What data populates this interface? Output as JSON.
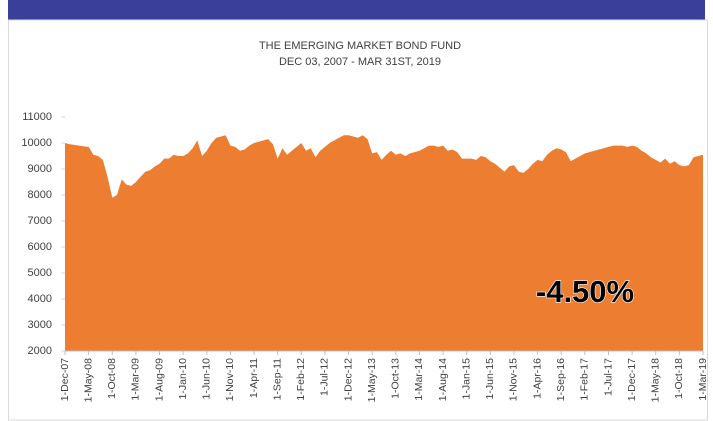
{
  "chart_data": {
    "type": "area",
    "title": "THE EMERGING MARKET BOND FUND",
    "subtitle": "DEC 03, 2007 - MAR 31ST, 2019",
    "annotation": "-4.50%",
    "color": "#ed7d31",
    "ylim": [
      2000,
      11000
    ],
    "yticks": [
      2000,
      3000,
      4000,
      5000,
      6000,
      7000,
      8000,
      9000,
      10000,
      11000
    ],
    "grid": false,
    "categories": [
      "1-Dec-07",
      null,
      null,
      null,
      null,
      "1-May-08",
      null,
      null,
      null,
      null,
      "1-Oct-08",
      null,
      null,
      null,
      null,
      "1-Mar-09",
      null,
      null,
      null,
      null,
      "1-Aug-09",
      null,
      null,
      null,
      null,
      "1-Jan-10",
      null,
      null,
      null,
      null,
      "1-Jun-10",
      null,
      null,
      null,
      null,
      "1-Nov-10",
      null,
      null,
      null,
      null,
      "1-Apr-11",
      null,
      null,
      null,
      null,
      "1-Sep-11",
      null,
      null,
      null,
      null,
      "1-Feb-12",
      null,
      null,
      null,
      null,
      "1-Jul-12",
      null,
      null,
      null,
      null,
      "1-Dec-12",
      null,
      null,
      null,
      null,
      "1-May-13",
      null,
      null,
      null,
      null,
      "1-Oct-13",
      null,
      null,
      null,
      null,
      "1-Mar-14",
      null,
      null,
      null,
      null,
      "1-Aug-14",
      null,
      null,
      null,
      null,
      "1-Jan-15",
      null,
      null,
      null,
      null,
      "1-Jun-15",
      null,
      null,
      null,
      null,
      "1-Nov-15",
      null,
      null,
      null,
      null,
      "1-Apr-16",
      null,
      null,
      null,
      null,
      "1-Sep-16",
      null,
      null,
      null,
      null,
      "1-Feb-17",
      null,
      null,
      null,
      null,
      "1-Jul-17",
      null,
      null,
      null,
      null,
      "1-Dec-17",
      null,
      null,
      null,
      null,
      "1-May-18",
      null,
      null,
      null,
      null,
      "1-Oct-18",
      null,
      null,
      null,
      null,
      "1-Mar-19"
    ],
    "values": [
      10000,
      9950,
      9930,
      9900,
      9870,
      9850,
      9550,
      9500,
      9350,
      8700,
      7900,
      8000,
      8600,
      8400,
      8350,
      8500,
      8700,
      8900,
      8950,
      9100,
      9200,
      9400,
      9400,
      9550,
      9500,
      9500,
      9600,
      9800,
      10100,
      9500,
      9700,
      10000,
      10200,
      10250,
      10300,
      9900,
      9850,
      9700,
      9750,
      9900,
      10000,
      10050,
      10100,
      10150,
      9950,
      9400,
      9800,
      9550,
      9700,
      9850,
      10000,
      9700,
      9800,
      9450,
      9700,
      9850,
      10000,
      10100,
      10200,
      10300,
      10300,
      10250,
      10200,
      10300,
      10150,
      9600,
      9650,
      9350,
      9550,
      9700,
      9550,
      9600,
      9500,
      9600,
      9650,
      9700,
      9800,
      9900,
      9900,
      9850,
      9900,
      9700,
      9750,
      9650,
      9400,
      9400,
      9400,
      9350,
      9500,
      9450,
      9300,
      9200,
      9050,
      8900,
      9100,
      9150,
      8900,
      8850,
      9000,
      9200,
      9350,
      9300,
      9550,
      9700,
      9800,
      9750,
      9650,
      9300,
      9400,
      9500,
      9600,
      9650,
      9700,
      9750,
      9800,
      9850,
      9900,
      9900,
      9900,
      9850,
      9900,
      9850,
      9700,
      9600,
      9450,
      9350,
      9250,
      9400,
      9200,
      9300,
      9150,
      9100,
      9150,
      9450,
      9500,
      9550
    ]
  }
}
